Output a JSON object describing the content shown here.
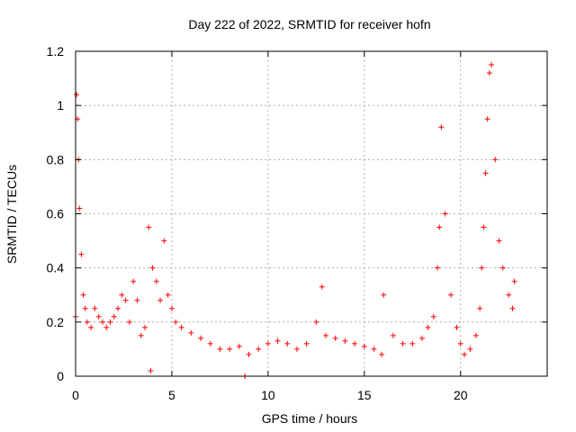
{
  "chart_data": {
    "type": "scatter",
    "title": "Day 222 of 2022, SRMTID for receiver hofn",
    "xlabel": "GPS time / hours",
    "ylabel": "SRMTID / TECUs",
    "xlim": [
      0,
      24.5
    ],
    "ylim": [
      0,
      1.2
    ],
    "xticks": [
      0,
      5,
      10,
      15,
      20
    ],
    "xtick_labels": [
      "0",
      "5",
      "10",
      "15",
      "20"
    ],
    "yticks": [
      0,
      0.2,
      0.4,
      0.6,
      0.8,
      1,
      1.2
    ],
    "ytick_labels": [
      "0",
      "0.2",
      "0.4",
      "0.6",
      "0.8",
      "1",
      "1.2"
    ],
    "grid": true,
    "marker": "+",
    "color": "#ff0000",
    "series": [
      {
        "name": "SRMTID",
        "x": [
          0.0,
          0.05,
          0.1,
          0.15,
          0.2,
          0.3,
          0.4,
          0.5,
          0.6,
          0.8,
          1.0,
          1.2,
          1.4,
          1.6,
          1.8,
          2.0,
          2.2,
          2.4,
          2.6,
          2.8,
          3.0,
          3.2,
          3.4,
          3.6,
          3.8,
          3.9,
          4.0,
          4.2,
          4.4,
          4.6,
          4.8,
          5.0,
          5.2,
          5.5,
          6.0,
          6.5,
          7.0,
          7.5,
          8.0,
          8.5,
          8.8,
          9.0,
          9.5,
          10.0,
          10.5,
          11.0,
          11.5,
          12.0,
          12.5,
          12.8,
          13.0,
          13.5,
          14.0,
          14.5,
          15.0,
          15.5,
          15.9,
          16.0,
          16.5,
          17.0,
          17.5,
          18.0,
          18.3,
          18.6,
          18.8,
          18.9,
          19.0,
          19.2,
          19.5,
          19.8,
          20.0,
          20.2,
          20.5,
          20.8,
          21.0,
          21.1,
          21.2,
          21.3,
          21.4,
          21.5,
          21.6,
          21.8,
          22.0,
          22.2,
          22.5,
          22.7,
          22.8
        ],
        "y": [
          0.22,
          1.04,
          0.95,
          0.8,
          0.62,
          0.45,
          0.3,
          0.25,
          0.2,
          0.18,
          0.25,
          0.22,
          0.2,
          0.18,
          0.2,
          0.22,
          0.25,
          0.3,
          0.28,
          0.2,
          0.35,
          0.28,
          0.15,
          0.18,
          0.55,
          0.02,
          0.4,
          0.35,
          0.28,
          0.5,
          0.3,
          0.25,
          0.2,
          0.18,
          0.16,
          0.14,
          0.12,
          0.1,
          0.1,
          0.11,
          0.0,
          0.08,
          0.1,
          0.12,
          0.13,
          0.12,
          0.1,
          0.12,
          0.2,
          0.33,
          0.15,
          0.14,
          0.13,
          0.12,
          0.11,
          0.1,
          0.08,
          0.3,
          0.15,
          0.12,
          0.12,
          0.14,
          0.18,
          0.22,
          0.4,
          0.55,
          0.92,
          0.6,
          0.3,
          0.18,
          0.12,
          0.08,
          0.1,
          0.15,
          0.25,
          0.4,
          0.55,
          0.75,
          0.95,
          1.12,
          1.15,
          0.8,
          0.5,
          0.4,
          0.3,
          0.25,
          0.35
        ]
      }
    ]
  }
}
